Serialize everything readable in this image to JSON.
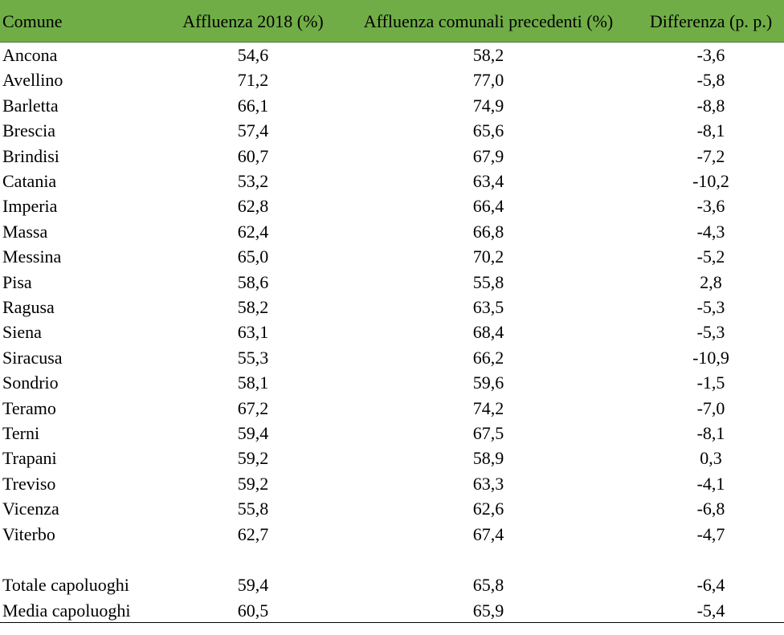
{
  "table": {
    "header": [
      "Comune",
      "Affluenza 2018 (%)",
      "Affluenza comunali precedenti (%)",
      "Differenza (p. p.)"
    ],
    "rows": [
      [
        "Ancona",
        "54,6",
        "58,2",
        "-3,6"
      ],
      [
        "Avellino",
        "71,2",
        "77,0",
        "-5,8"
      ],
      [
        "Barletta",
        "66,1",
        "74,9",
        "-8,8"
      ],
      [
        "Brescia",
        "57,4",
        "65,6",
        "-8,1"
      ],
      [
        "Brindisi",
        "60,7",
        "67,9",
        "-7,2"
      ],
      [
        "Catania",
        "53,2",
        "63,4",
        "-10,2"
      ],
      [
        "Imperia",
        "62,8",
        "66,4",
        "-3,6"
      ],
      [
        "Massa",
        "62,4",
        "66,8",
        "-4,3"
      ],
      [
        "Messina",
        "65,0",
        "70,2",
        "-5,2"
      ],
      [
        "Pisa",
        "58,6",
        "55,8",
        "2,8"
      ],
      [
        "Ragusa",
        "58,2",
        "63,5",
        "-5,3"
      ],
      [
        "Siena",
        "63,1",
        "68,4",
        "-5,3"
      ],
      [
        "Siracusa",
        "55,3",
        "66,2",
        "-10,9"
      ],
      [
        "Sondrio",
        "58,1",
        "59,6",
        "-1,5"
      ],
      [
        "Teramo",
        "67,2",
        "74,2",
        "-7,0"
      ],
      [
        "Terni",
        "59,4",
        "67,5",
        "-8,1"
      ],
      [
        "Trapani",
        "59,2",
        "58,9",
        "0,3"
      ],
      [
        "Treviso",
        "59,2",
        "63,3",
        "-4,1"
      ],
      [
        "Vicenza",
        "55,8",
        "62,6",
        "-6,8"
      ],
      [
        "Viterbo",
        "62,7",
        "67,4",
        "-4,7"
      ]
    ],
    "totals": [
      [
        "Totale capoluoghi",
        "59,4",
        "65,8",
        "-6,4"
      ],
      [
        "Media capoluoghi",
        "60,5",
        "65,9",
        "-5,4"
      ]
    ]
  }
}
